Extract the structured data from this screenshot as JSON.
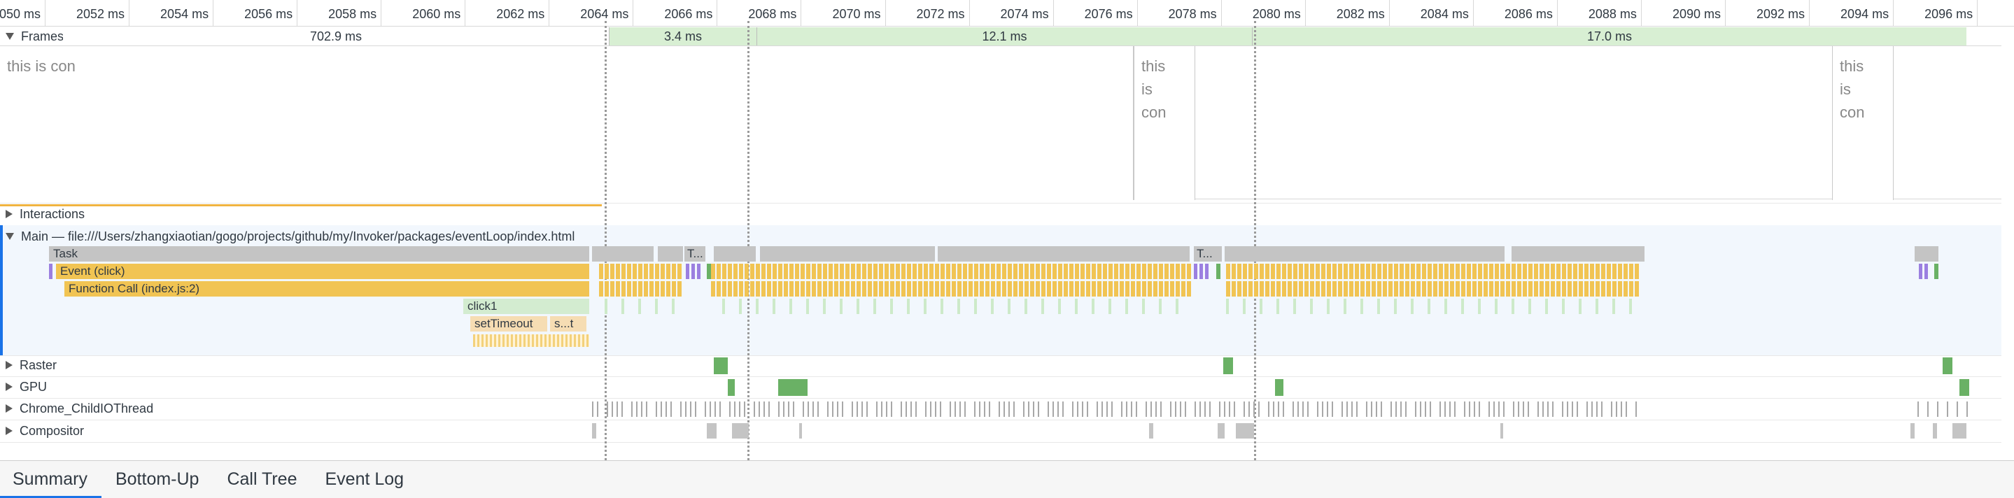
{
  "ruler": {
    "ticks": [
      "050 ms",
      "2052 ms",
      "2054 ms",
      "2056 ms",
      "2058 ms",
      "2060 ms",
      "2062 ms",
      "2064 ms",
      "2066 ms",
      "2068 ms",
      "2070 ms",
      "2072 ms",
      "2074 ms",
      "2076 ms",
      "2078 ms",
      "2080 ms",
      "2082 ms",
      "2084 ms",
      "2086 ms",
      "2088 ms",
      "2090 ms",
      "2092 ms",
      "2094 ms",
      "2096 ms"
    ]
  },
  "frames": {
    "label": "Frames",
    "segments": [
      {
        "label": "702.9 ms",
        "kind": "idle"
      },
      {
        "label": "3.4 ms",
        "kind": "green"
      },
      {
        "label": "12.1 ms",
        "kind": "green"
      },
      {
        "label": "17.0 ms",
        "kind": "green"
      }
    ]
  },
  "screenshots": [
    {
      "text": "this is con"
    },
    {
      "text": "this is con"
    },
    {
      "text": "this is con"
    }
  ],
  "tracks": {
    "interactions": "Interactions",
    "main": "Main — file:///Users/zhangxiaotian/gogo/projects/github/my/Invoker/packages/eventLoop/index.html",
    "raster": "Raster",
    "gpu": "GPU",
    "io": "Chrome_ChildIOThread",
    "compositor": "Compositor"
  },
  "flame": {
    "task": "Task",
    "event": "Event (click)",
    "function": "Function Call (index.js:2)",
    "click": "click1",
    "timer1": "setTimeout",
    "timer2": "s...t",
    "short1": "T...",
    "short2": "T..."
  },
  "colors": {
    "task": "#c4c4c4",
    "scripting": "#f1c453",
    "painting": "#6ab165",
    "rendering": "#9b7fe0",
    "frame_green": "#d8efd3",
    "selection_blue": "#1a73e8"
  },
  "tabs": [
    {
      "label": "Summary",
      "active": true
    },
    {
      "label": "Bottom-Up",
      "active": false
    },
    {
      "label": "Call Tree",
      "active": false
    },
    {
      "label": "Event Log",
      "active": false
    }
  ]
}
